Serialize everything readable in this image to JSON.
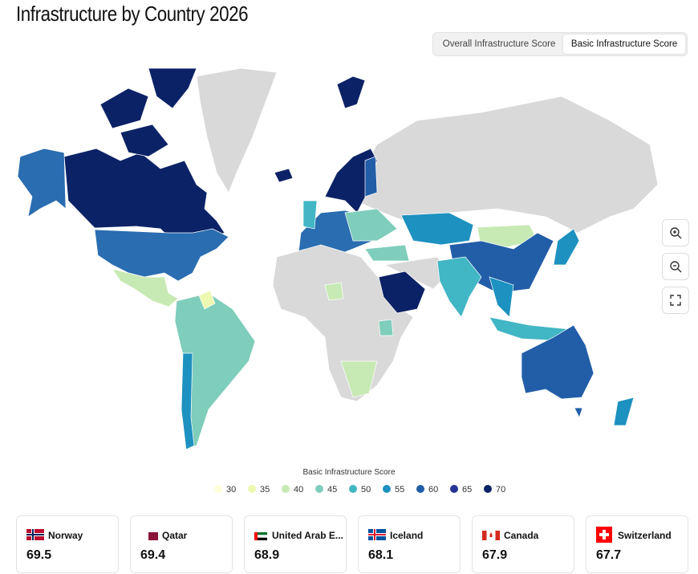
{
  "header": {
    "title": "Infrastructure by Country 2026"
  },
  "toggle": {
    "options": [
      "Overall Infrastructure Score",
      "Basic Infrastructure Score"
    ],
    "active": 1
  },
  "legend": {
    "title": "Basic Infrastructure Score",
    "items": [
      {
        "value": 30,
        "color": "#ffffd9"
      },
      {
        "value": 35,
        "color": "#edf8b1"
      },
      {
        "value": 40,
        "color": "#c7e9b4"
      },
      {
        "value": 45,
        "color": "#7fcdbb"
      },
      {
        "value": 50,
        "color": "#41b6c4"
      },
      {
        "value": 55,
        "color": "#1d91c0"
      },
      {
        "value": 60,
        "color": "#225ea8"
      },
      {
        "value": 65,
        "color": "#253494"
      },
      {
        "value": 70,
        "color": "#0c2266"
      }
    ]
  },
  "cards": [
    {
      "country": "Norway",
      "score": 69.5
    },
    {
      "country": "Qatar",
      "score": 69.4
    },
    {
      "country": "United Arab E...",
      "score": 68.9
    },
    {
      "country": "Iceland",
      "score": 68.1
    },
    {
      "country": "Canada",
      "score": 67.9
    },
    {
      "country": "Switzerland",
      "score": 67.7
    }
  ]
}
